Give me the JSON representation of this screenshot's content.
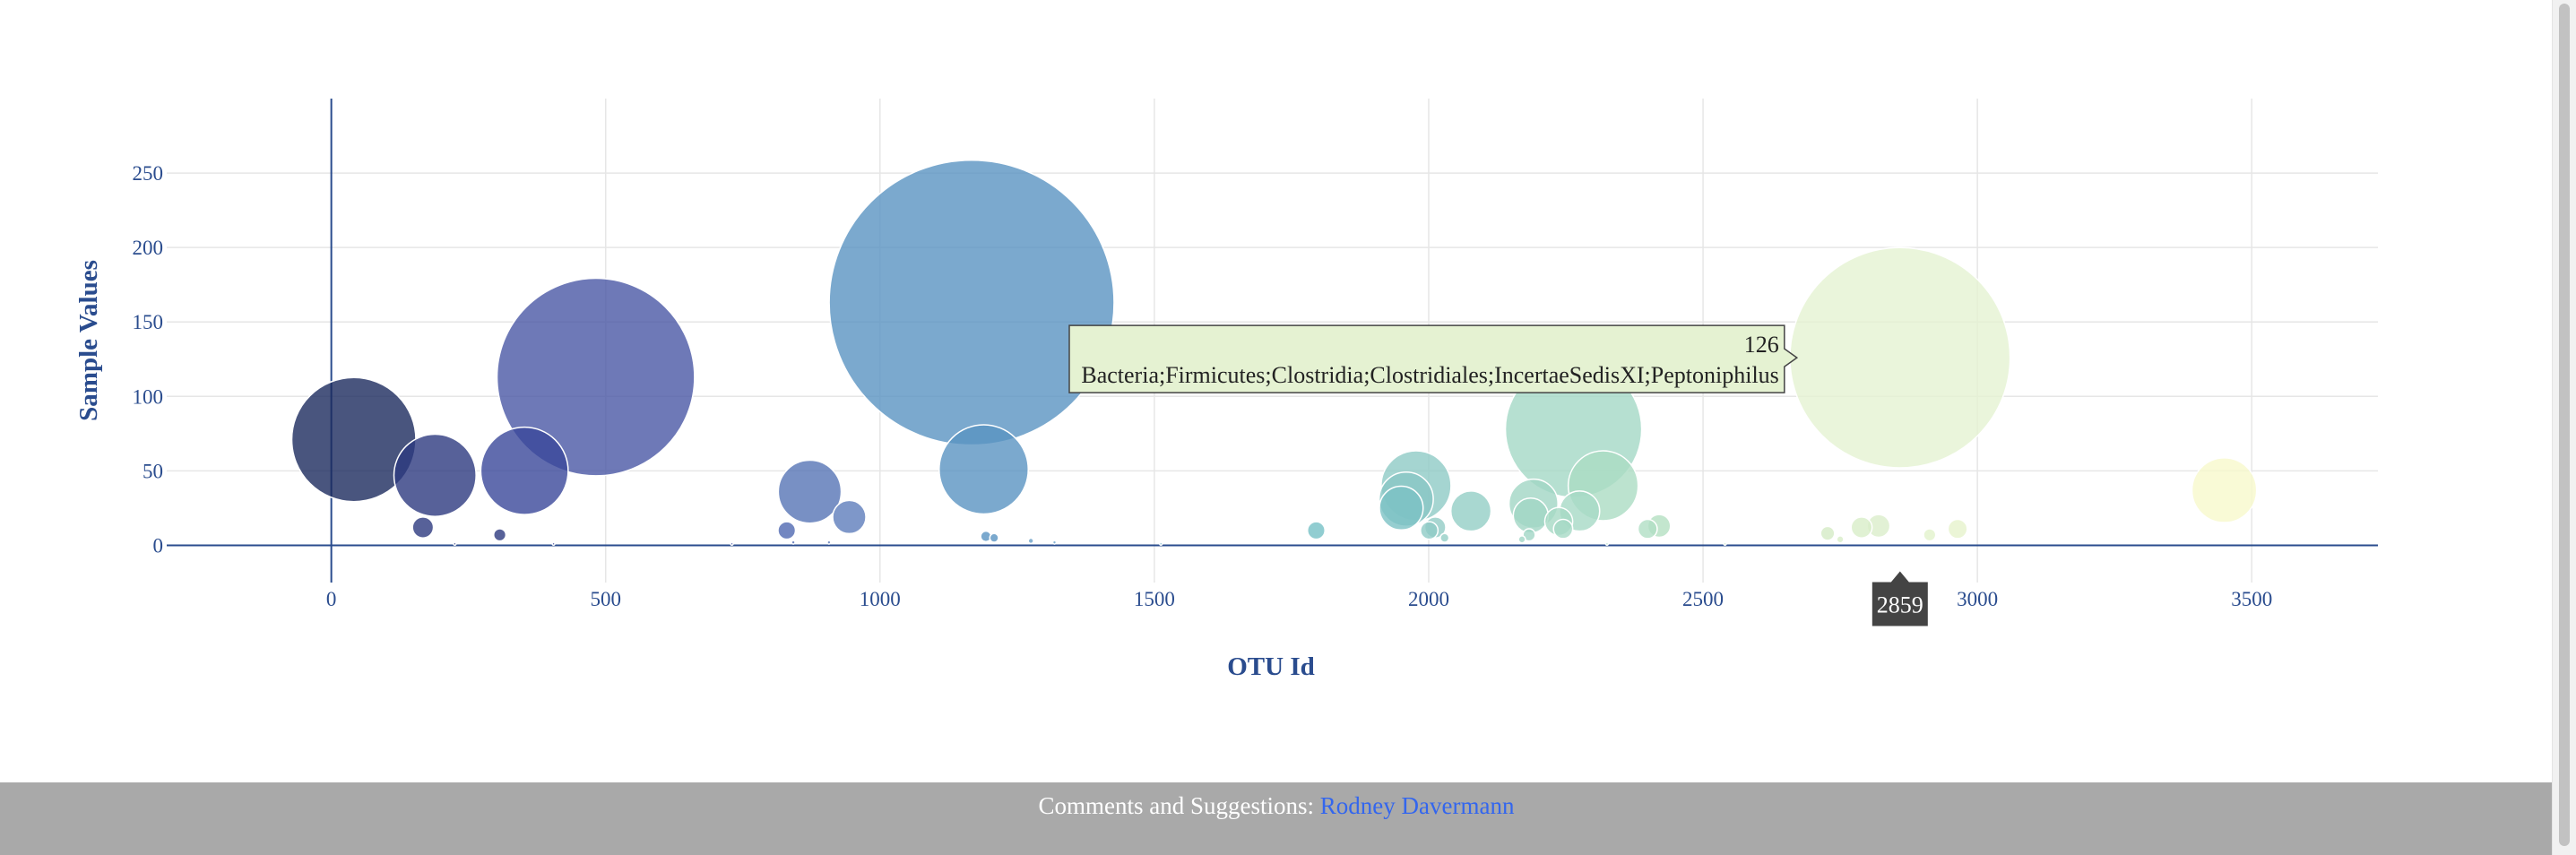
{
  "chart_data": {
    "type": "scatter",
    "xlabel": "OTU Id",
    "ylabel": "Sample Values",
    "xlim": [
      -300,
      3730
    ],
    "ylim": [
      -25,
      300
    ],
    "xticks": [
      0,
      500,
      1000,
      1500,
      2000,
      2500,
      3000,
      3500
    ],
    "yticks": [
      0,
      50,
      100,
      150,
      200,
      250
    ],
    "grid": true,
    "colorscale": "Earth",
    "points": [
      {
        "x": 1167,
        "y": 163,
        "color": "#5a93c2"
      },
      {
        "x": 2859,
        "y": 126,
        "color": "#e5f2d2"
      },
      {
        "x": 482,
        "y": 113,
        "color": "#4a57a5"
      },
      {
        "x": 2264,
        "y": 78,
        "color": "#a4d8c6"
      },
      {
        "x": 41,
        "y": 71,
        "color": "#1c2a5e"
      },
      {
        "x": 1189,
        "y": 51,
        "color": "#5a93c2"
      },
      {
        "x": 352,
        "y": 50,
        "color": "#3a479a"
      },
      {
        "x": 189,
        "y": 47,
        "color": "#2d3a80"
      },
      {
        "x": 1977,
        "y": 40,
        "color": "#8ecac6"
      },
      {
        "x": 2318,
        "y": 40,
        "color": "#abdcc3"
      },
      {
        "x": 3450,
        "y": 37,
        "color": "#f8f9cc"
      },
      {
        "x": 872,
        "y": 36,
        "color": "#5674b5"
      },
      {
        "x": 1959,
        "y": 31,
        "color": "#88c6c4"
      },
      {
        "x": 2191,
        "y": 28,
        "color": "#a1d6c4"
      },
      {
        "x": 1950,
        "y": 25,
        "color": "#7cc2c4"
      },
      {
        "x": 2077,
        "y": 23,
        "color": "#94cec6"
      },
      {
        "x": 2275,
        "y": 23,
        "color": "#a6d9c6"
      },
      {
        "x": 2186,
        "y": 20,
        "color": "#a1d6c4"
      },
      {
        "x": 944,
        "y": 19,
        "color": "#5e7dbc"
      },
      {
        "x": 2237,
        "y": 16,
        "color": "#a6d9c4"
      },
      {
        "x": 2820,
        "y": 13,
        "color": "#dbeecb"
      },
      {
        "x": 2420,
        "y": 13,
        "color": "#b4e0c2"
      },
      {
        "x": 167,
        "y": 12,
        "color": "#2d3a80"
      },
      {
        "x": 2789,
        "y": 12,
        "color": "#d8edc8"
      },
      {
        "x": 2012,
        "y": 12,
        "color": "#92ccc6"
      },
      {
        "x": 2245,
        "y": 11,
        "color": "#a6d9c6"
      },
      {
        "x": 2964,
        "y": 11,
        "color": "#e6f2cc"
      },
      {
        "x": 2399,
        "y": 11,
        "color": "#b0dec4"
      },
      {
        "x": 2001,
        "y": 10,
        "color": "#8ecac6"
      },
      {
        "x": 830,
        "y": 10,
        "color": "#5069b2"
      },
      {
        "x": 1795,
        "y": 10,
        "color": "#76c0c6"
      },
      {
        "x": 2727,
        "y": 8,
        "color": "#d4ebc6"
      },
      {
        "x": 307,
        "y": 7,
        "color": "#2d3a80"
      },
      {
        "x": 2183,
        "y": 7,
        "color": "#a1d6c6"
      },
      {
        "x": 2913,
        "y": 7,
        "color": "#e2f2cc"
      },
      {
        "x": 1193,
        "y": 6,
        "color": "#5a93c2"
      },
      {
        "x": 1208,
        "y": 5,
        "color": "#5a93c2"
      },
      {
        "x": 2029,
        "y": 5,
        "color": "#94cec6"
      },
      {
        "x": 2750,
        "y": 4,
        "color": "#d8edc8"
      },
      {
        "x": 2170,
        "y": 4,
        "color": "#a1d6c6"
      },
      {
        "x": 1275,
        "y": 3,
        "color": "#6aa0c8"
      },
      {
        "x": 1318,
        "y": 2,
        "color": "#6aa0c8"
      },
      {
        "x": 842,
        "y": 2,
        "color": "#5069b2"
      },
      {
        "x": 907,
        "y": 2,
        "color": "#5674b5"
      },
      {
        "x": 730,
        "y": 1,
        "color": "#4a57a5"
      },
      {
        "x": 225,
        "y": 1,
        "color": "#2d3a80"
      },
      {
        "x": 405,
        "y": 1,
        "color": "#3a479a"
      },
      {
        "x": 2325,
        "y": 1,
        "color": "#abdcc3"
      },
      {
        "x": 2540,
        "y": 1,
        "color": "#c2e6c4"
      },
      {
        "x": 1512,
        "y": 1,
        "color": "#6fb0c6"
      }
    ],
    "hover": {
      "x_value": "2859",
      "y_value": "126",
      "label": "Bacteria;Firmicutes;Clostridia;Clostridiales;IncertaeSedisXI;Peptoniphilus"
    }
  },
  "footer": {
    "text": "Comments and Suggestions: ",
    "link_label": "Rodney Davermann"
  },
  "colors": {
    "axis": "#2a4c8e",
    "grid": "#e6e6e6",
    "tooltip_bg": "#e5f2d2",
    "footer_bg": "#a9a9a9"
  }
}
